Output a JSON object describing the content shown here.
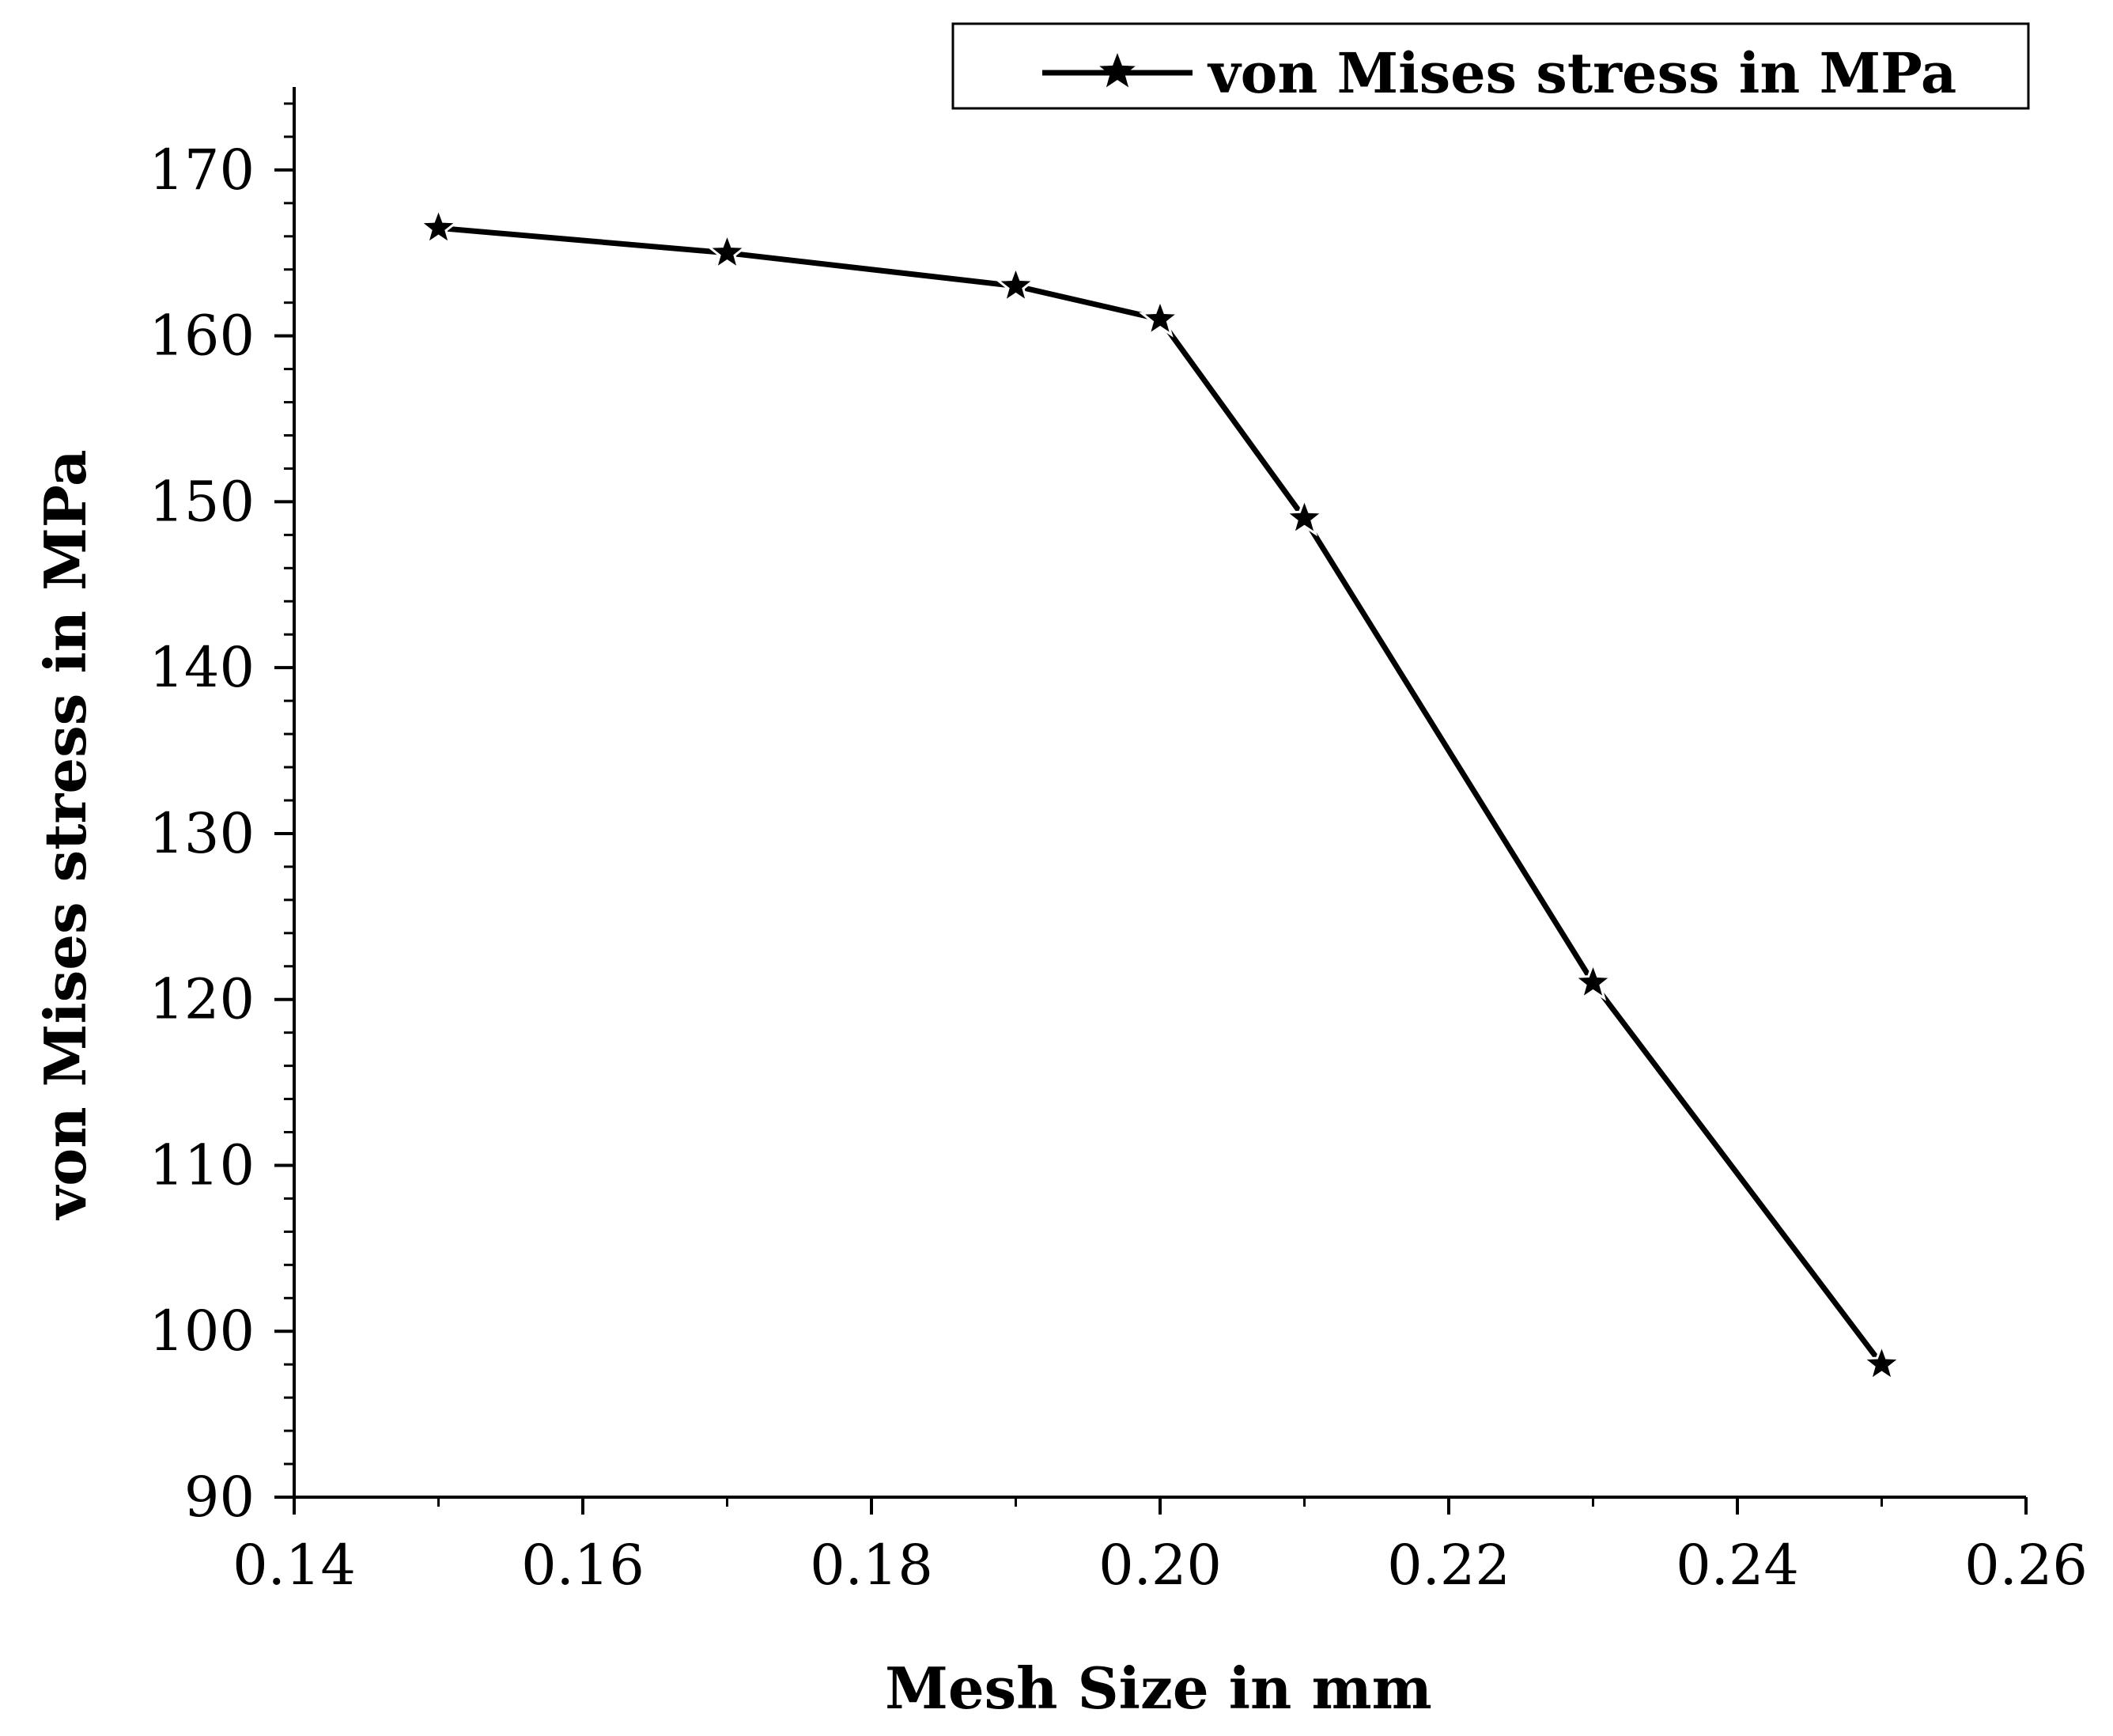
{
  "chart_data": {
    "type": "line",
    "title": "",
    "xlabel": "Mesh Size in mm",
    "ylabel": "von Mises stress in MPa",
    "xlim": [
      0.14,
      0.26
    ],
    "ylim": [
      90,
      175
    ],
    "x_ticks": [
      "0.14",
      "0.16",
      "0.18",
      "0.20",
      "0.22",
      "0.24",
      "0.26"
    ],
    "y_ticks": [
      "90",
      "100",
      "110",
      "120",
      "130",
      "140",
      "150",
      "160",
      "170"
    ],
    "series": [
      {
        "name": "von Mises stress in MPa",
        "marker": "star",
        "color": "#000000",
        "x": [
          0.15,
          0.17,
          0.19,
          0.2,
          0.21,
          0.23,
          0.25
        ],
        "y": [
          166.5,
          165,
          163,
          161,
          149,
          121,
          98
        ]
      }
    ],
    "legend": {
      "position": "top-right",
      "label": "von Mises stress in MPa"
    },
    "grid": false
  }
}
